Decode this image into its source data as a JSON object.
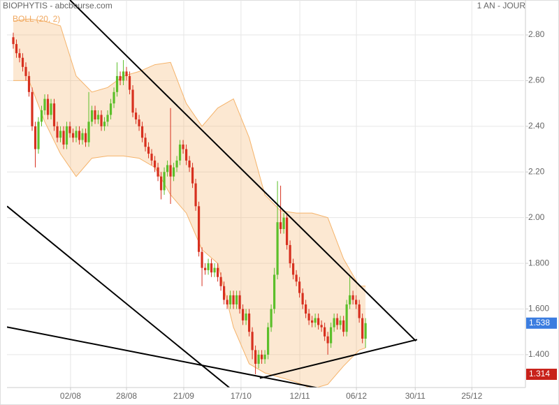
{
  "chart_data": {
    "type": "candlestick",
    "title": "BIOPHYTIS - abcbourse.com",
    "period": "1 AN - JOUR",
    "indicator": "BOLL (20, 2)",
    "up_color": "#5cbf2a",
    "down_color": "#d7301f",
    "band_color": "#f5b36a",
    "grid": true,
    "xlim": [
      -2,
      162.4
    ],
    "ylim": [
      1.256,
      2.953
    ],
    "xticks": [
      {
        "value": 18.2,
        "label": "02/08"
      },
      {
        "value": 36,
        "label": "28/08"
      },
      {
        "value": 54.2,
        "label": "21/09"
      },
      {
        "value": 72.4,
        "label": "17/10"
      },
      {
        "value": 91.1,
        "label": "12/11"
      },
      {
        "value": 109.1,
        "label": "06/12"
      },
      {
        "value": 127.8,
        "label": "30/11"
      },
      {
        "value": 145.8,
        "label": "25/12"
      }
    ],
    "yticks": [
      {
        "value": 2.8,
        "label": "2.80"
      },
      {
        "value": 2.6,
        "label": "2.60"
      },
      {
        "value": 2.4,
        "label": "2.40"
      },
      {
        "value": 2.2,
        "label": "2.20"
      },
      {
        "value": 2.0,
        "label": "2.00"
      },
      {
        "value": 1.8,
        "label": "1.800"
      },
      {
        "value": 1.6,
        "label": "1.600"
      },
      {
        "value": 1.4,
        "label": "1.400"
      }
    ],
    "candles": {
      "open": [
        2.79,
        2.76,
        2.72,
        2.7,
        2.66,
        2.62,
        2.55,
        2.4,
        2.3,
        2.42,
        2.47,
        2.52,
        2.45,
        2.5,
        2.4,
        2.35,
        2.38,
        2.32,
        2.4,
        2.37,
        2.35,
        2.38,
        2.34,
        2.37,
        2.33,
        2.42,
        2.47,
        2.43,
        2.45,
        2.4,
        2.42,
        2.45,
        2.5,
        2.55,
        2.62,
        2.6,
        2.64,
        2.62,
        2.56,
        2.46,
        2.43,
        2.4,
        2.35,
        2.31,
        2.28,
        2.25,
        2.22,
        2.18,
        2.12,
        2.2,
        2.23,
        2.18,
        2.22,
        2.25,
        2.32,
        2.3,
        2.25,
        2.22,
        2.15,
        2.05,
        1.85,
        1.78,
        1.77,
        1.8,
        1.76,
        1.78,
        1.74,
        1.7,
        1.64,
        1.62,
        1.66,
        1.62,
        1.66,
        1.6,
        1.55,
        1.58,
        1.5,
        1.42,
        1.36,
        1.4,
        1.38,
        1.4,
        1.52,
        1.6,
        1.75,
        1.98,
        1.95,
        2.0,
        1.88,
        1.8,
        1.75,
        1.72,
        1.67,
        1.62,
        1.58,
        1.55,
        1.54,
        1.56,
        1.53,
        1.52,
        1.48,
        1.45,
        1.52,
        1.56,
        1.53,
        1.55,
        1.5,
        1.62,
        1.66,
        1.64,
        1.62,
        1.56,
        1.47
      ],
      "high": [
        2.81,
        2.78,
        2.74,
        2.72,
        2.68,
        2.64,
        2.57,
        2.42,
        2.44,
        2.49,
        2.54,
        2.54,
        2.52,
        2.52,
        2.42,
        2.4,
        2.4,
        2.42,
        2.42,
        2.39,
        2.4,
        2.4,
        2.39,
        2.39,
        2.55,
        2.49,
        2.49,
        2.47,
        2.47,
        2.44,
        2.47,
        2.52,
        2.57,
        2.68,
        2.64,
        2.69,
        2.66,
        2.64,
        2.58,
        2.48,
        2.45,
        2.42,
        2.37,
        2.33,
        2.3,
        2.27,
        2.24,
        2.2,
        2.22,
        2.25,
        2.48,
        2.24,
        2.27,
        2.34,
        2.34,
        2.32,
        2.27,
        2.24,
        2.17,
        2.07,
        1.87,
        1.8,
        1.82,
        1.82,
        1.8,
        1.8,
        1.76,
        1.72,
        1.66,
        1.68,
        1.68,
        1.68,
        1.68,
        1.62,
        1.6,
        1.6,
        1.52,
        1.44,
        1.42,
        1.42,
        1.42,
        1.54,
        1.62,
        1.78,
        2.16,
        2.14,
        2.02,
        2.02,
        1.9,
        1.82,
        1.77,
        1.74,
        1.69,
        1.64,
        1.6,
        1.57,
        1.58,
        1.58,
        1.55,
        1.54,
        1.5,
        1.54,
        1.58,
        1.58,
        1.57,
        1.57,
        1.64,
        1.74,
        1.68,
        1.66,
        1.64,
        1.58,
        1.56
      ],
      "low": [
        2.74,
        2.7,
        2.68,
        2.64,
        2.6,
        2.53,
        2.38,
        2.22,
        2.28,
        2.4,
        2.45,
        2.43,
        2.43,
        2.38,
        2.33,
        2.33,
        2.3,
        2.3,
        2.35,
        2.33,
        2.33,
        2.32,
        2.32,
        2.31,
        2.31,
        2.4,
        2.41,
        2.41,
        2.38,
        2.38,
        2.4,
        2.43,
        2.48,
        2.53,
        2.58,
        2.58,
        2.6,
        2.54,
        2.44,
        2.41,
        2.38,
        2.33,
        2.29,
        2.26,
        2.23,
        2.2,
        2.16,
        2.08,
        2.1,
        2.18,
        2.06,
        2.16,
        2.2,
        2.23,
        2.28,
        2.23,
        2.2,
        2.13,
        2.03,
        1.83,
        1.7,
        1.75,
        1.75,
        1.74,
        1.74,
        1.72,
        1.68,
        1.62,
        1.6,
        1.6,
        1.6,
        1.6,
        1.58,
        1.53,
        1.53,
        1.48,
        1.38,
        1.314,
        1.34,
        1.36,
        1.36,
        1.38,
        1.5,
        1.58,
        1.73,
        1.93,
        1.93,
        1.86,
        1.78,
        1.73,
        1.7,
        1.65,
        1.6,
        1.56,
        1.53,
        1.52,
        1.52,
        1.51,
        1.5,
        1.46,
        1.4,
        1.43,
        1.5,
        1.51,
        1.51,
        1.48,
        1.48,
        1.6,
        1.62,
        1.6,
        1.54,
        1.45,
        1.43
      ],
      "close": [
        2.76,
        2.72,
        2.7,
        2.66,
        2.62,
        2.55,
        2.4,
        2.3,
        2.42,
        2.47,
        2.52,
        2.45,
        2.5,
        2.4,
        2.35,
        2.38,
        2.32,
        2.4,
        2.37,
        2.35,
        2.38,
        2.34,
        2.37,
        2.33,
        2.42,
        2.47,
        2.43,
        2.45,
        2.4,
        2.42,
        2.45,
        2.5,
        2.55,
        2.62,
        2.6,
        2.64,
        2.62,
        2.56,
        2.46,
        2.43,
        2.4,
        2.35,
        2.31,
        2.28,
        2.25,
        2.22,
        2.18,
        2.12,
        2.2,
        2.23,
        2.18,
        2.22,
        2.25,
        2.32,
        2.3,
        2.25,
        2.22,
        2.15,
        2.05,
        1.85,
        1.78,
        1.77,
        1.8,
        1.76,
        1.78,
        1.74,
        1.7,
        1.64,
        1.62,
        1.66,
        1.62,
        1.66,
        1.6,
        1.55,
        1.58,
        1.5,
        1.42,
        1.36,
        1.4,
        1.38,
        1.4,
        1.52,
        1.6,
        1.75,
        1.98,
        1.95,
        2.0,
        1.88,
        1.8,
        1.75,
        1.72,
        1.67,
        1.62,
        1.58,
        1.55,
        1.54,
        1.56,
        1.53,
        1.52,
        1.48,
        1.45,
        1.52,
        1.56,
        1.53,
        1.55,
        1.5,
        1.62,
        1.66,
        1.64,
        1.62,
        1.56,
        1.47,
        1.538
      ]
    },
    "bands": {
      "x": [
        0,
        5,
        10,
        15,
        20,
        25,
        30,
        35,
        40,
        45,
        50,
        55,
        60,
        65,
        70,
        75,
        80,
        85,
        90,
        95,
        100,
        105,
        110,
        112
      ],
      "upper": [
        2.86,
        2.87,
        2.86,
        2.84,
        2.62,
        2.55,
        2.57,
        2.62,
        2.64,
        2.67,
        2.68,
        2.5,
        2.4,
        2.48,
        2.52,
        2.35,
        2.1,
        2.03,
        2.02,
        2.02,
        2.0,
        1.82,
        1.7,
        1.7
      ],
      "lower": [
        2.6,
        2.6,
        2.42,
        2.28,
        2.18,
        2.26,
        2.27,
        2.27,
        2.26,
        2.22,
        2.1,
        2.02,
        1.86,
        1.8,
        1.52,
        1.36,
        1.32,
        1.3,
        1.28,
        1.25,
        1.27,
        1.35,
        1.42,
        1.43
      ]
    },
    "trendlines": [
      {
        "x": [
          18,
          128
        ],
        "y": [
          2.953,
          1.46
        ]
      },
      {
        "x": [
          78.4,
          128.4
        ],
        "y": [
          1.297,
          1.466
        ]
      },
      {
        "x": [
          -2,
          100.2
        ],
        "y": [
          1.521,
          1.245
        ]
      },
      {
        "x": [
          -2,
          69.1
        ],
        "y": [
          2.05,
          1.251
        ]
      }
    ],
    "last_price": 1.538,
    "low_price": 1.314
  }
}
